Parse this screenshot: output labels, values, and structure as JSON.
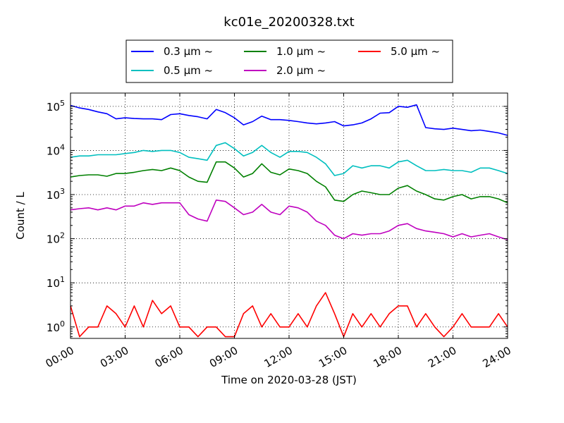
{
  "chart_data": {
    "type": "line",
    "title": "kc01e_20200328.txt",
    "xlabel": "Time on 2020-03-28 (JST)",
    "ylabel": "Count / L",
    "x_unit": "hours",
    "xlim": [
      0,
      24
    ],
    "ylim": [
      0.55,
      200000
    ],
    "yscale": "log",
    "grid": true,
    "legend_position": "top-center, above plot",
    "x_ticks": [
      {
        "value": 0,
        "label": "00:00"
      },
      {
        "value": 3,
        "label": "03:00"
      },
      {
        "value": 6,
        "label": "06:00"
      },
      {
        "value": 9,
        "label": "09:00"
      },
      {
        "value": 12,
        "label": "12:00"
      },
      {
        "value": 15,
        "label": "15:00"
      },
      {
        "value": 18,
        "label": "18:00"
      },
      {
        "value": 21,
        "label": "21:00"
      },
      {
        "value": 24,
        "label": "24:00"
      }
    ],
    "y_ticks": [
      {
        "value": 1,
        "base": "10",
        "exp": "0"
      },
      {
        "value": 10,
        "base": "10",
        "exp": "1"
      },
      {
        "value": 100,
        "base": "10",
        "exp": "2"
      },
      {
        "value": 1000,
        "base": "10",
        "exp": "3"
      },
      {
        "value": 10000,
        "base": "10",
        "exp": "4"
      },
      {
        "value": 100000,
        "base": "10",
        "exp": "5"
      }
    ],
    "series": [
      {
        "name": "0.3 μm ~",
        "color": "#0000ff",
        "x": [
          0,
          0.5,
          1,
          1.5,
          2,
          2.5,
          3,
          3.5,
          4,
          4.5,
          5,
          5.5,
          6,
          6.5,
          7,
          7.5,
          8,
          8.5,
          9,
          9.5,
          10,
          10.5,
          11,
          11.5,
          12,
          12.5,
          13,
          13.5,
          14,
          14.5,
          15,
          15.5,
          16,
          16.5,
          17,
          17.5,
          18,
          18.5,
          19,
          19.5,
          20,
          20.5,
          21,
          21.5,
          22,
          22.5,
          23,
          23.5,
          24
        ],
        "y": [
          105000,
          92000,
          85000,
          75000,
          68000,
          52000,
          55000,
          53000,
          52000,
          52000,
          50000,
          65000,
          68000,
          62000,
          58000,
          52000,
          85000,
          72000,
          55000,
          38000,
          45000,
          60000,
          50000,
          50000,
          48000,
          45000,
          42000,
          40000,
          42000,
          45000,
          36000,
          38000,
          42000,
          52000,
          70000,
          72000,
          100000,
          95000,
          108000,
          33000,
          31000,
          30000,
          32000,
          30000,
          28000,
          29000,
          27000,
          25000,
          22000
        ]
      },
      {
        "name": "0.5 μm ~",
        "color": "#00bfbf",
        "x": [
          0,
          0.5,
          1,
          1.5,
          2,
          2.5,
          3,
          3.5,
          4,
          4.5,
          5,
          5.5,
          6,
          6.5,
          7,
          7.5,
          8,
          8.5,
          9,
          9.5,
          10,
          10.5,
          11,
          11.5,
          12,
          12.5,
          13,
          13.5,
          14,
          14.5,
          15,
          15.5,
          16,
          16.5,
          17,
          17.5,
          18,
          18.5,
          19,
          19.5,
          20,
          20.5,
          21,
          21.5,
          22,
          22.5,
          23,
          23.5,
          24
        ],
        "y": [
          7000,
          7500,
          7500,
          8000,
          8000,
          8000,
          8500,
          9000,
          10000,
          9500,
          10000,
          10000,
          9000,
          7000,
          6500,
          6000,
          13000,
          15000,
          11000,
          7500,
          9000,
          13000,
          9000,
          7000,
          9500,
          9500,
          9000,
          7000,
          5000,
          2700,
          3000,
          4500,
          4000,
          4500,
          4500,
          4000,
          5500,
          6000,
          4500,
          3500,
          3500,
          3700,
          3500,
          3500,
          3200,
          4000,
          4000,
          3500,
          3000
        ]
      },
      {
        "name": "1.0 μm ~",
        "color": "#008000",
        "x": [
          0,
          0.5,
          1,
          1.5,
          2,
          2.5,
          3,
          3.5,
          4,
          4.5,
          5,
          5.5,
          6,
          6.5,
          7,
          7.5,
          8,
          8.5,
          9,
          9.5,
          10,
          10.5,
          11,
          11.5,
          12,
          12.5,
          13,
          13.5,
          14,
          14.5,
          15,
          15.5,
          16,
          16.5,
          17,
          17.5,
          18,
          18.5,
          19,
          19.5,
          20,
          20.5,
          21,
          21.5,
          22,
          22.5,
          23,
          23.5,
          24
        ],
        "y": [
          2500,
          2700,
          2800,
          2800,
          2600,
          3000,
          3000,
          3200,
          3500,
          3700,
          3500,
          4000,
          3500,
          2500,
          2000,
          1900,
          5500,
          5500,
          4000,
          2500,
          3000,
          5000,
          3200,
          2800,
          3800,
          3500,
          3000,
          2000,
          1500,
          750,
          700,
          1000,
          1200,
          1100,
          1000,
          1000,
          1400,
          1600,
          1200,
          1000,
          800,
          750,
          900,
          1000,
          800,
          900,
          900,
          800,
          650
        ]
      },
      {
        "name": "2.0 μm ~",
        "color": "#bf00bf",
        "x": [
          0,
          0.5,
          1,
          1.5,
          2,
          2.5,
          3,
          3.5,
          4,
          4.5,
          5,
          5.5,
          6,
          6.5,
          7,
          7.5,
          8,
          8.5,
          9,
          9.5,
          10,
          10.5,
          11,
          11.5,
          12,
          12.5,
          13,
          13.5,
          14,
          14.5,
          15,
          15.5,
          16,
          16.5,
          17,
          17.5,
          18,
          18.5,
          19,
          19.5,
          20,
          20.5,
          21,
          21.5,
          22,
          22.5,
          23,
          23.5,
          24
        ],
        "y": [
          450,
          480,
          500,
          450,
          500,
          450,
          550,
          550,
          650,
          600,
          650,
          650,
          650,
          350,
          280,
          250,
          750,
          700,
          500,
          350,
          400,
          600,
          400,
          350,
          550,
          500,
          400,
          250,
          200,
          120,
          100,
          130,
          120,
          130,
          130,
          150,
          200,
          220,
          170,
          150,
          140,
          130,
          110,
          130,
          110,
          120,
          130,
          110,
          95
        ]
      },
      {
        "name": "5.0 μm ~",
        "color": "#ff0000",
        "x": [
          0,
          0.5,
          1,
          1.5,
          2,
          2.5,
          3,
          3.5,
          4,
          4.5,
          5,
          5.5,
          6,
          6.5,
          7,
          7.5,
          8,
          8.5,
          9,
          9.5,
          10,
          10.5,
          11,
          11.5,
          12,
          12.5,
          13,
          13.5,
          14,
          14.5,
          15,
          15.5,
          16,
          16.5,
          17,
          17.5,
          18,
          18.5,
          19,
          19.5,
          20,
          20.5,
          21,
          21.5,
          22,
          22.5,
          23,
          23.5,
          24
        ],
        "y": [
          3,
          0.6,
          1,
          1,
          3,
          2,
          1,
          3,
          1,
          4,
          2,
          3,
          1,
          1,
          0.6,
          1,
          1,
          0.6,
          0.6,
          2,
          3,
          1,
          2,
          1,
          1,
          2,
          1,
          3,
          6,
          2,
          0.6,
          2,
          1,
          2,
          1,
          2,
          3,
          3,
          1,
          2,
          1,
          0.6,
          1,
          2,
          1,
          1,
          1,
          2,
          1
        ]
      }
    ]
  }
}
